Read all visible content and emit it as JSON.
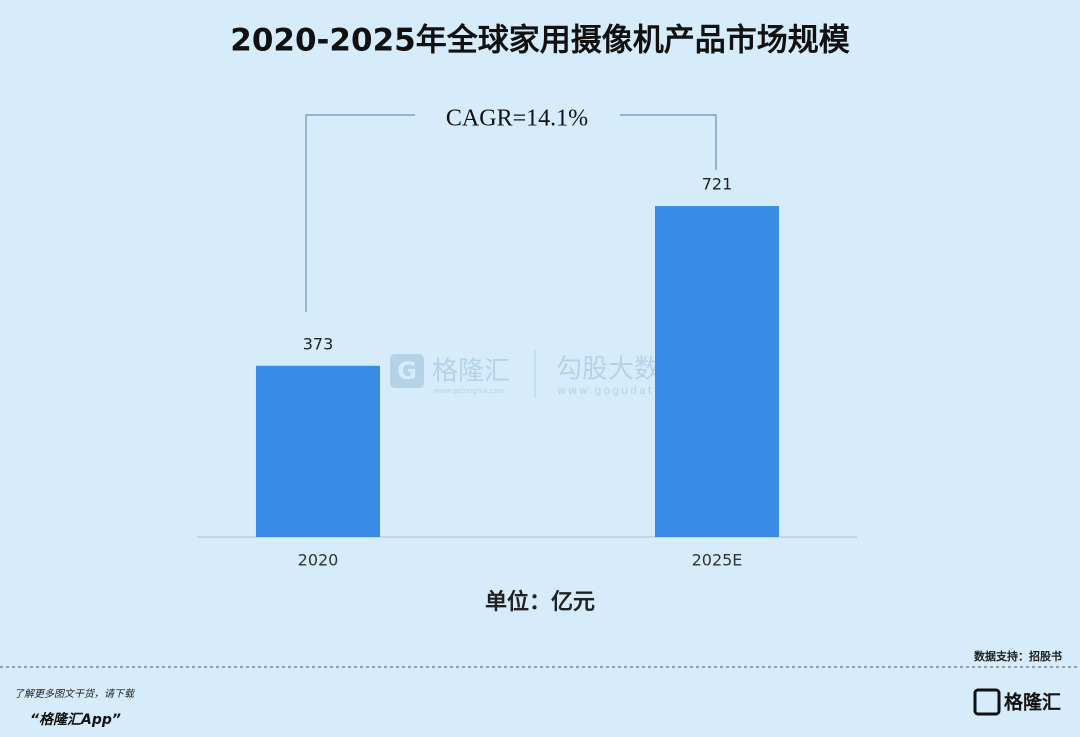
{
  "chart_data": {
    "type": "bar",
    "title": "2020-2025年全球家用摄像机产品市场规模",
    "categories": [
      "2020",
      "2025E"
    ],
    "values": [
      373,
      721
    ],
    "color": "#3a8ae8",
    "annotation": "CAGR=14.1%",
    "unit_label": "单位：亿元"
  },
  "watermark": {
    "brand": "格隆汇",
    "brand_url": "www.gelonghui.com",
    "product": "勾股大数据",
    "product_url": "www.gogudata.com"
  },
  "source": "数据支持：招股书",
  "footer": {
    "line1": "了解更多图文干货，请下载",
    "line2": "“格隆汇App”",
    "logo": "格隆汇"
  }
}
